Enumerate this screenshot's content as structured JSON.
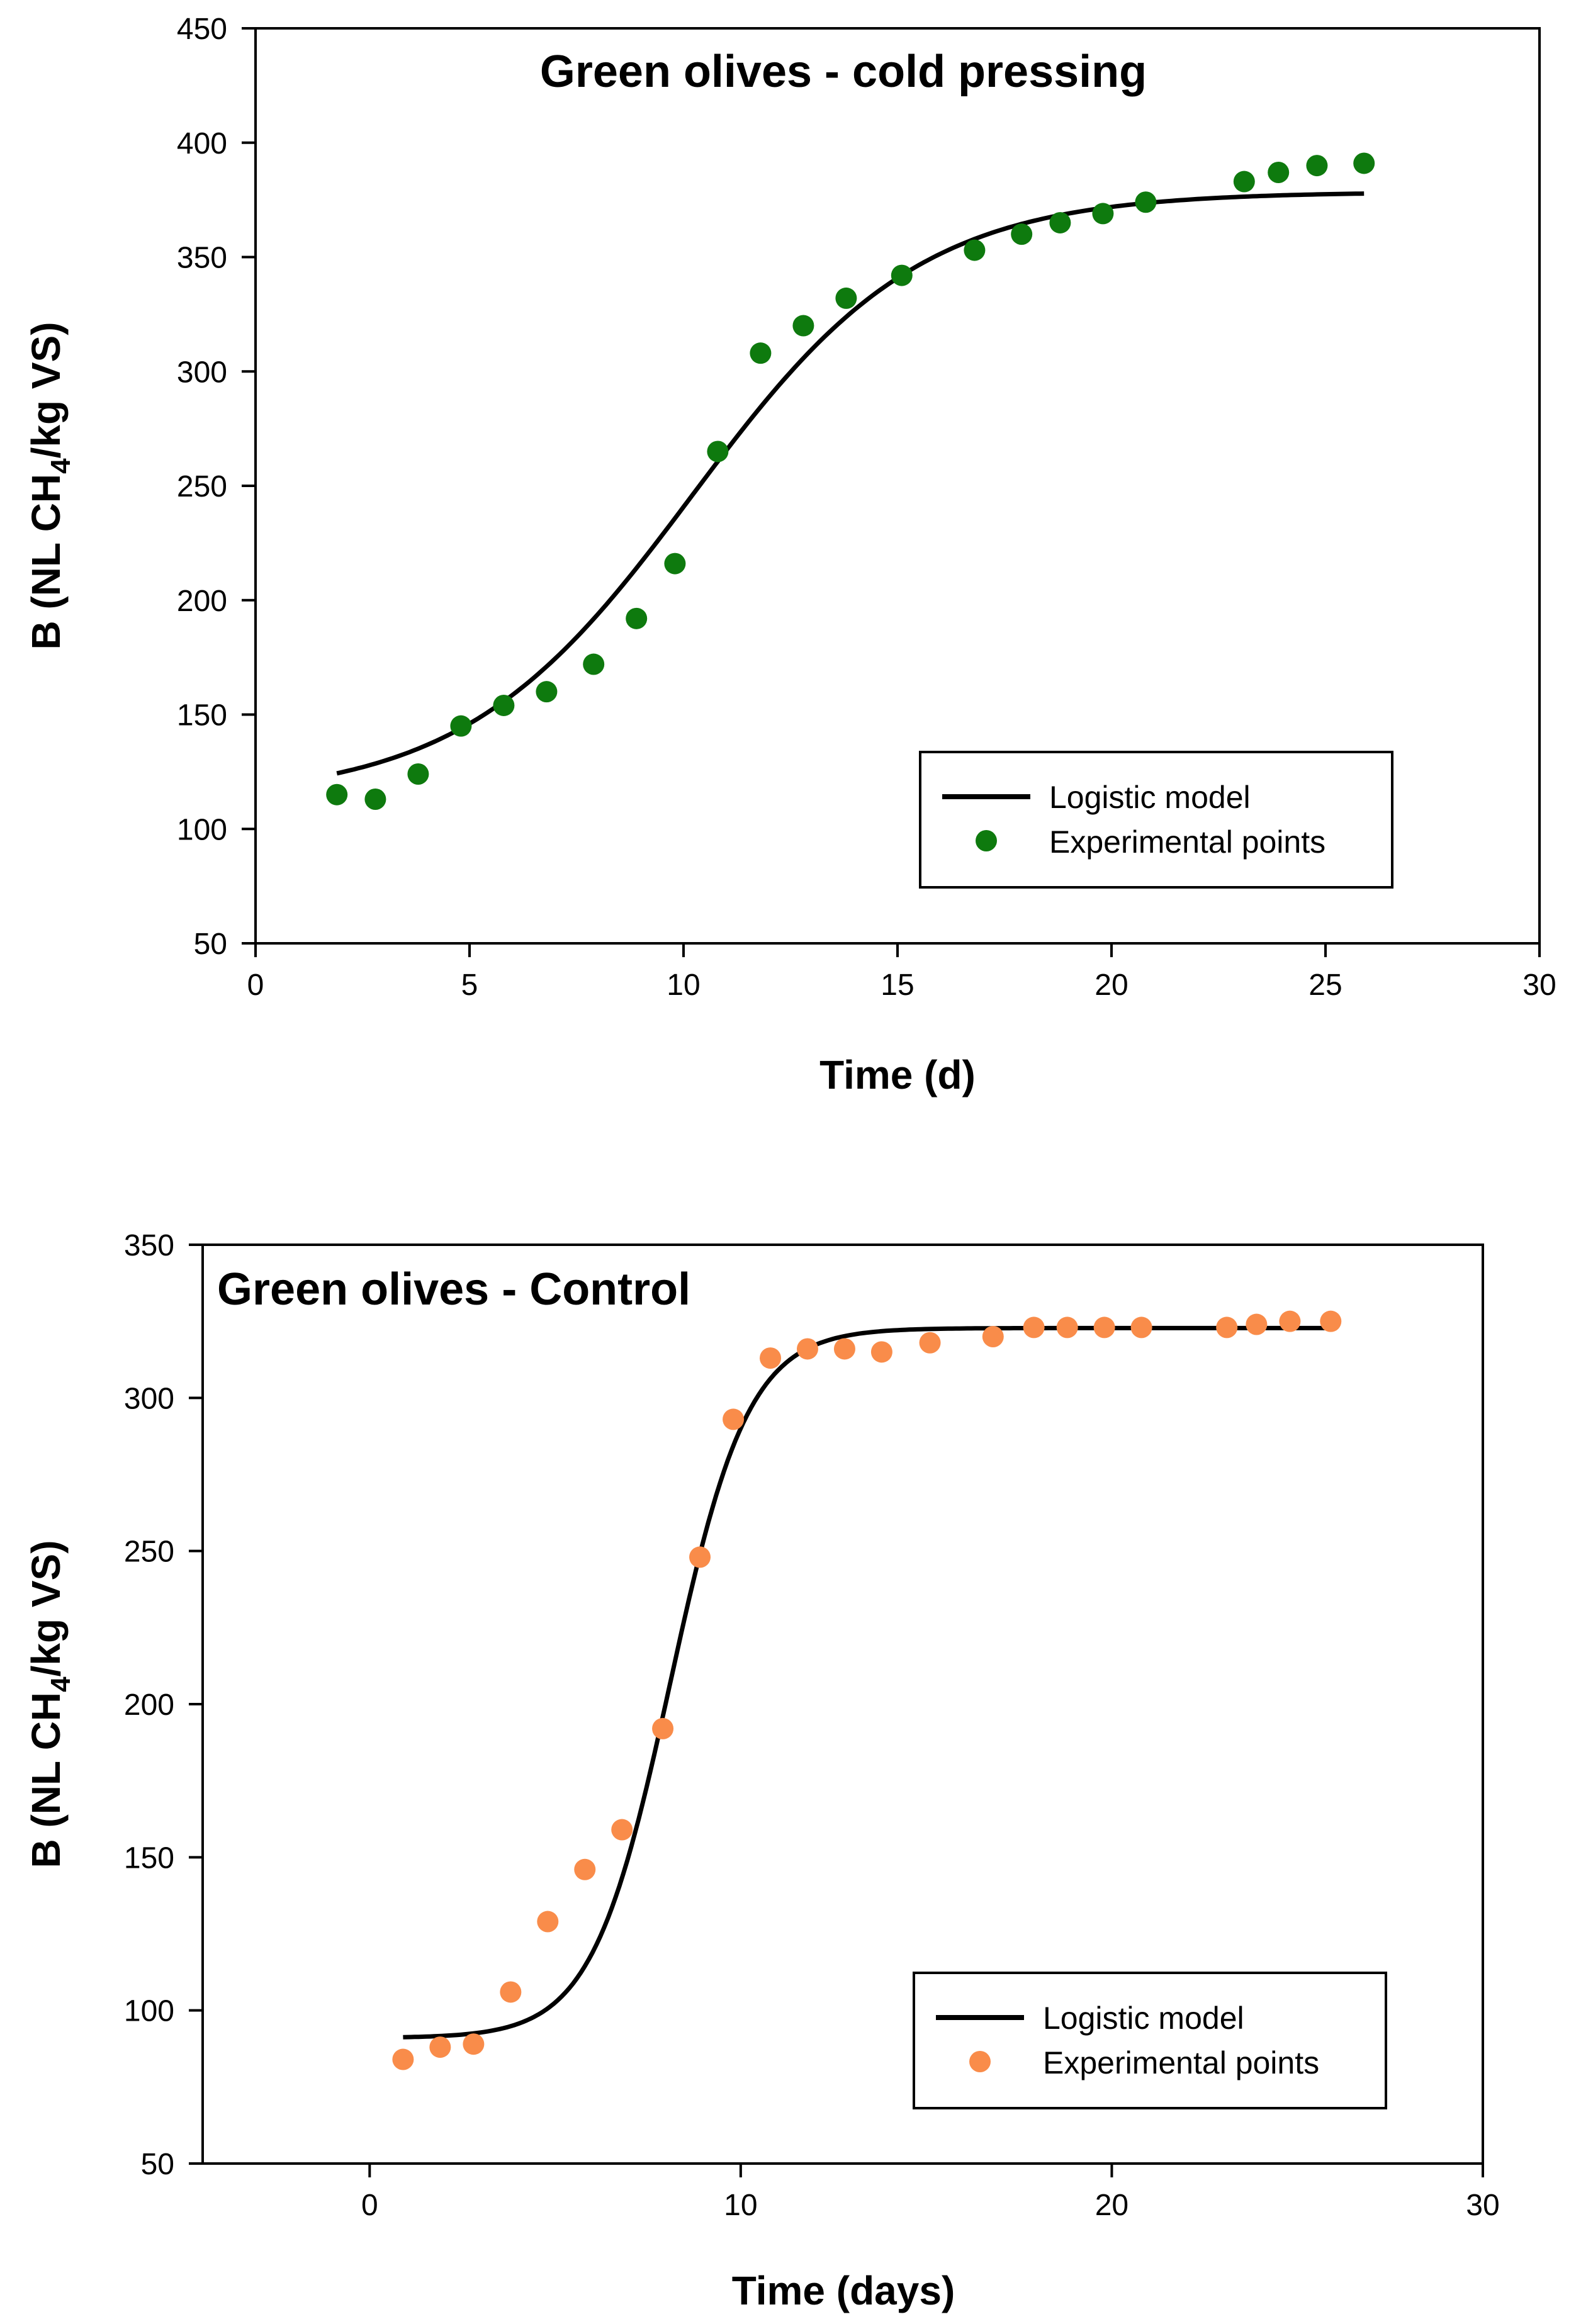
{
  "chart_data": [
    {
      "type": "scatter",
      "title": "Green olives - cold pressing",
      "xlabel": "Time (d)",
      "ylabel": {
        "prefix": "B (NL CH",
        "subscript": "4",
        "suffix": "/kg VS)"
      },
      "xlim": [
        0,
        30
      ],
      "ylim": [
        50,
        450
      ],
      "xticks": [
        0,
        5,
        10,
        15,
        20,
        25,
        30
      ],
      "yticks": [
        50,
        100,
        150,
        200,
        250,
        300,
        350,
        400,
        450
      ],
      "legend": {
        "position": "bottom-right",
        "entries": [
          "Logistic model",
          "Experimental points"
        ]
      },
      "model": {
        "name": "Logistic model",
        "color": "#000000",
        "B0": 113,
        "Bmax": 378.5,
        "t0": 10.2,
        "k": 0.375,
        "x_range": [
          1.9,
          25.9
        ]
      },
      "series": [
        {
          "name": "Experimental points",
          "color": "#0e7a0e",
          "x": [
            1.9,
            2.8,
            3.8,
            4.8,
            5.8,
            6.8,
            7.9,
            8.9,
            9.8,
            10.8,
            11.8,
            12.8,
            13.8,
            15.1,
            16.8,
            17.9,
            18.8,
            19.8,
            20.8,
            23.1,
            23.9,
            24.8,
            25.9
          ],
          "y": [
            115,
            113,
            124,
            145,
            154,
            160,
            172,
            192,
            216,
            265,
            308,
            320,
            332,
            342,
            353,
            360,
            365,
            369,
            374,
            383,
            387,
            390,
            391
          ]
        }
      ]
    },
    {
      "type": "scatter",
      "title": "Green olives - Control",
      "xlabel": "Time (days)",
      "ylabel": {
        "prefix": "B (NL CH",
        "subscript": "4",
        "suffix": "/kg VS)"
      },
      "xlim": [
        -4.5,
        30
      ],
      "ylim": [
        50,
        350
      ],
      "xticks": [
        0,
        10,
        20,
        30
      ],
      "yticks": [
        50,
        100,
        150,
        200,
        250,
        300,
        350
      ],
      "legend": {
        "position": "bottom-right",
        "entries": [
          "Logistic model",
          "Experimental points"
        ]
      },
      "model": {
        "name": "Logistic model",
        "color": "#000000",
        "B0": 91,
        "Bmax": 322.8,
        "t0": 8.1,
        "k": 0.95,
        "x_range": [
          0.9,
          25.9
        ]
      },
      "series": [
        {
          "name": "Experimental points",
          "color": "#f98c4a",
          "x": [
            0.9,
            1.9,
            2.8,
            3.8,
            4.8,
            5.8,
            6.8,
            7.9,
            8.9,
            9.8,
            10.8,
            11.8,
            12.8,
            13.8,
            15.1,
            16.8,
            17.9,
            18.8,
            19.8,
            20.8,
            23.1,
            23.9,
            24.8,
            25.9
          ],
          "y": [
            84,
            88,
            89,
            106,
            129,
            146,
            159,
            192,
            248,
            293,
            313,
            316,
            316,
            315,
            318,
            320,
            323,
            323,
            323,
            323,
            323,
            324,
            325,
            325
          ]
        }
      ]
    }
  ]
}
